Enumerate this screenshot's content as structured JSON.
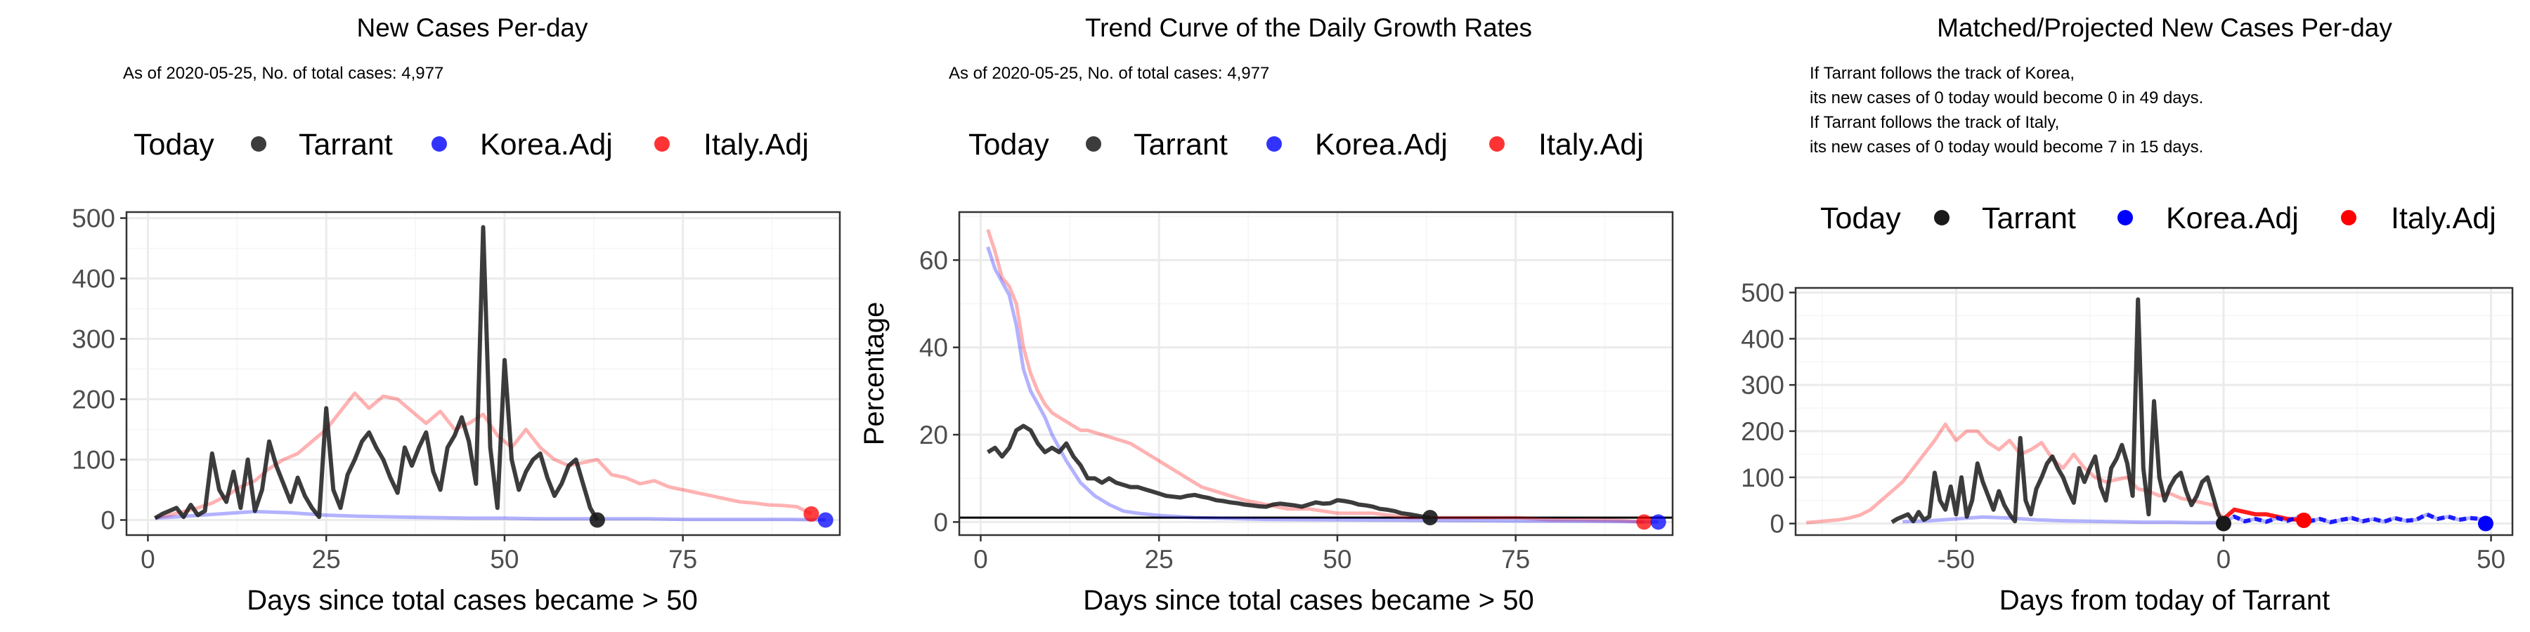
{
  "colors": {
    "tarrant": "#1a1a1a",
    "korea": "#0000ff",
    "italy": "#ff0000",
    "grid_major": "#ebebeb",
    "grid_minor": "#f5f5f5",
    "tick_text": "#4d4d4d"
  },
  "chart_data": [
    {
      "type": "line",
      "title": "New Cases Per-day",
      "subtitle": "As of 2020-05-25, No. of total cases: 4,977",
      "legend": {
        "title": "Today",
        "placement": "top",
        "items": [
          "Tarrant",
          "Korea.Adj",
          "Italy.Adj"
        ]
      },
      "xlabel": "Days since total cases became > 50",
      "ylabel": "",
      "xlim": [
        -3,
        97
      ],
      "ylim": [
        -25,
        510
      ],
      "xticks": [
        0,
        25,
        50,
        75
      ],
      "xtick_labels": [
        "0",
        "25",
        "50",
        "75"
      ],
      "yticks": [
        0,
        100,
        200,
        300,
        400,
        500
      ],
      "ytick_labels": [
        "0",
        "100",
        "200",
        "300",
        "400",
        "500"
      ],
      "grid": true,
      "series": [
        {
          "name": "Italy.Adj",
          "x": [
            1,
            3,
            5,
            7,
            9,
            11,
            13,
            15,
            17,
            19,
            21,
            23,
            25,
            27,
            29,
            31,
            33,
            35,
            37,
            39,
            41,
            43,
            45,
            47,
            49,
            51,
            53,
            55,
            57,
            59,
            61,
            63,
            65,
            67,
            69,
            71,
            73,
            75,
            77,
            79,
            81,
            83,
            85,
            87,
            89,
            91,
            93
          ],
          "y": [
            4,
            8,
            14,
            20,
            28,
            40,
            55,
            65,
            85,
            100,
            110,
            130,
            150,
            180,
            210,
            185,
            205,
            200,
            180,
            160,
            180,
            150,
            160,
            175,
            140,
            120,
            150,
            120,
            100,
            90,
            95,
            100,
            75,
            70,
            60,
            65,
            55,
            50,
            45,
            40,
            35,
            30,
            28,
            25,
            24,
            22,
            10
          ],
          "end_point": {
            "x": 93,
            "y": 10
          }
        },
        {
          "name": "Korea.Adj",
          "x": [
            1,
            5,
            10,
            15,
            20,
            25,
            30,
            35,
            40,
            45,
            50,
            55,
            60,
            65,
            70,
            75,
            80,
            85,
            90,
            95
          ],
          "y": [
            3,
            6,
            10,
            14,
            12,
            8,
            6,
            5,
            4,
            3,
            3,
            2,
            2,
            2,
            2,
            1,
            1,
            1,
            1,
            0
          ],
          "end_point": {
            "x": 95,
            "y": 0
          }
        },
        {
          "name": "Tarrant",
          "x": [
            1,
            2,
            3,
            4,
            5,
            6,
            7,
            8,
            9,
            10,
            11,
            12,
            13,
            14,
            15,
            16,
            17,
            18,
            19,
            20,
            21,
            22,
            23,
            24,
            25,
            26,
            27,
            28,
            29,
            30,
            31,
            32,
            33,
            34,
            35,
            36,
            37,
            38,
            39,
            40,
            41,
            42,
            43,
            44,
            45,
            46,
            47,
            48,
            49,
            50,
            51,
            52,
            53,
            54,
            55,
            56,
            57,
            58,
            59,
            60,
            61,
            62,
            63
          ],
          "y": [
            3,
            10,
            15,
            20,
            5,
            25,
            8,
            15,
            110,
            50,
            30,
            80,
            20,
            100,
            15,
            50,
            130,
            90,
            60,
            30,
            70,
            40,
            20,
            5,
            185,
            50,
            20,
            75,
            100,
            130,
            145,
            120,
            100,
            70,
            45,
            120,
            90,
            120,
            145,
            80,
            50,
            120,
            140,
            170,
            130,
            60,
            485,
            120,
            20,
            265,
            100,
            50,
            80,
            100,
            110,
            70,
            40,
            60,
            90,
            100,
            60,
            20,
            0
          ],
          "end_point": {
            "x": 63,
            "y": 0
          }
        }
      ]
    },
    {
      "type": "line",
      "title": "Trend Curve of the Daily Growth Rates",
      "subtitle": "As of 2020-05-25, No. of total cases: 4,977",
      "legend": {
        "title": "Today",
        "placement": "top",
        "items": [
          "Tarrant",
          "Korea.Adj",
          "Italy.Adj"
        ]
      },
      "xlabel": "Days since total cases became > 50",
      "ylabel": "Percentage",
      "xlim": [
        -3,
        97
      ],
      "ylim": [
        -3,
        71
      ],
      "xticks": [
        0,
        25,
        50,
        75
      ],
      "xtick_labels": [
        "0",
        "25",
        "50",
        "75"
      ],
      "yticks": [
        0,
        20,
        40,
        60
      ],
      "ytick_labels": [
        "0",
        "20",
        "40",
        "60"
      ],
      "grid": true,
      "hline": 1,
      "series": [
        {
          "name": "Italy.Adj",
          "x": [
            1,
            2,
            3,
            4,
            5,
            6,
            7,
            8,
            9,
            10,
            11,
            12,
            13,
            14,
            15,
            17,
            19,
            21,
            23,
            25,
            27,
            29,
            31,
            33,
            35,
            37,
            40,
            43,
            46,
            50,
            55,
            60,
            65,
            70,
            75,
            80,
            85,
            90,
            93
          ],
          "y": [
            67,
            62,
            56,
            54,
            50,
            40,
            34,
            30,
            27,
            25,
            24,
            23,
            22,
            21,
            21,
            20,
            19,
            18,
            16,
            14,
            12,
            10,
            8,
            7,
            6,
            5,
            4,
            3,
            3,
            2,
            2,
            1,
            1,
            1,
            1,
            0.5,
            0.5,
            0.3,
            0
          ],
          "end_point": {
            "x": 93,
            "y": 0
          }
        },
        {
          "name": "Korea.Adj",
          "x": [
            1,
            2,
            3,
            4,
            5,
            6,
            7,
            8,
            9,
            10,
            12,
            14,
            16,
            18,
            20,
            22,
            25,
            30,
            35,
            40,
            50,
            60,
            70,
            80,
            90,
            95
          ],
          "y": [
            63,
            58,
            55,
            52,
            45,
            35,
            30,
            27,
            24,
            20,
            14,
            9,
            6,
            4,
            2.5,
            2,
            1.5,
            1,
            0.8,
            0.6,
            0.5,
            0.4,
            0.3,
            0.2,
            0.1,
            0
          ],
          "end_point": {
            "x": 95,
            "y": 0
          }
        },
        {
          "name": "Tarrant",
          "x": [
            1,
            2,
            3,
            4,
            5,
            6,
            7,
            8,
            9,
            10,
            11,
            12,
            13,
            14,
            15,
            16,
            17,
            18,
            19,
            20,
            21,
            22,
            23,
            24,
            25,
            26,
            27,
            28,
            29,
            30,
            31,
            32,
            33,
            34,
            35,
            36,
            37,
            38,
            39,
            40,
            41,
            42,
            43,
            44,
            45,
            46,
            47,
            48,
            49,
            50,
            51,
            52,
            53,
            54,
            55,
            56,
            57,
            58,
            59,
            60,
            61,
            62,
            63
          ],
          "y": [
            16,
            17,
            15,
            17,
            21,
            22,
            21,
            18,
            16,
            17,
            16,
            18,
            15,
            13,
            10,
            10,
            9,
            10,
            9,
            8.5,
            8,
            8,
            7.5,
            7,
            6.5,
            6,
            5.8,
            5.6,
            6,
            6.2,
            5.8,
            5.5,
            5,
            4.8,
            4.5,
            4.3,
            4,
            3.8,
            3.6,
            3.5,
            4,
            4.2,
            4,
            3.8,
            3.5,
            4,
            4.5,
            4.2,
            4.3,
            5,
            4.8,
            4.5,
            4,
            3.8,
            3.5,
            3,
            2.8,
            2.5,
            2,
            1.8,
            1.5,
            1.2,
            1
          ],
          "end_point": {
            "x": 63,
            "y": 1
          }
        }
      ]
    },
    {
      "type": "line",
      "title": "Matched/Projected New Cases Per-day",
      "annotations": [
        "If Tarrant follows the track of Korea,",
        "its new cases of 0 today would become 0 in 49 days.",
        "If Tarrant follows the track of Italy,",
        "its new cases of 0 today would become 7 in 15 days."
      ],
      "legend": {
        "title": "Today",
        "placement": "top",
        "items": [
          "Tarrant",
          "Korea.Adj",
          "Italy.Adj"
        ]
      },
      "xlabel": "Days from today of Tarrant",
      "ylabel": "",
      "xlim": [
        -80,
        54
      ],
      "ylim": [
        -25,
        510
      ],
      "xticks": [
        -50,
        0,
        50
      ],
      "xtick_labels": [
        "-50",
        "0",
        "50"
      ],
      "yticks": [
        0,
        100,
        200,
        300,
        400,
        500
      ],
      "ytick_labels": [
        "0",
        "100",
        "200",
        "300",
        "400",
        "500"
      ],
      "grid": true,
      "series": [
        {
          "name": "Italy.Adj",
          "x": [
            -78,
            -75,
            -72,
            -70,
            -68,
            -66,
            -64,
            -62,
            -60,
            -58,
            -56,
            -54,
            -52,
            -50,
            -48,
            -46,
            -44,
            -42,
            -40,
            -38,
            -36,
            -34,
            -32,
            -30,
            -28,
            -26,
            -24,
            -22,
            -20,
            -18,
            -16,
            -14,
            -12,
            -10,
            -8,
            -6,
            -4,
            -2,
            0,
            2,
            4,
            6,
            8,
            10,
            12,
            15
          ],
          "y": [
            2,
            5,
            8,
            12,
            18,
            30,
            50,
            70,
            90,
            120,
            150,
            180,
            215,
            180,
            200,
            200,
            175,
            160,
            180,
            150,
            160,
            175,
            140,
            120,
            150,
            120,
            100,
            90,
            95,
            100,
            75,
            70,
            60,
            65,
            55,
            50,
            45,
            40,
            10,
            30,
            25,
            20,
            20,
            15,
            10,
            7
          ],
          "end_point": {
            "x": 15,
            "y": 7
          }
        },
        {
          "name": "Korea.Adj",
          "x": [
            -60,
            -55,
            -50,
            -45,
            -40,
            -35,
            -30,
            -25,
            -20,
            -15,
            -10,
            -5,
            0,
            2,
            4,
            6,
            8,
            10,
            12,
            14,
            16,
            18,
            20,
            22,
            24,
            26,
            28,
            30,
            32,
            34,
            36,
            38,
            40,
            42,
            44,
            46,
            48,
            49
          ],
          "y": [
            4,
            6,
            10,
            14,
            12,
            8,
            6,
            5,
            4,
            3,
            3,
            2,
            2,
            15,
            5,
            10,
            4,
            12,
            6,
            14,
            5,
            10,
            3,
            8,
            12,
            5,
            10,
            4,
            12,
            6,
            8,
            20,
            10,
            15,
            8,
            12,
            10,
            0
          ],
          "end_point": {
            "x": 49,
            "y": 0
          }
        },
        {
          "name": "Tarrant",
          "x": [
            -62,
            -61,
            -60,
            -59,
            -58,
            -57,
            -56,
            -55,
            -54,
            -53,
            -52,
            -51,
            -50,
            -49,
            -48,
            -47,
            -46,
            -45,
            -44,
            -43,
            -42,
            -41,
            -40,
            -39,
            -38,
            -37,
            -36,
            -35,
            -34,
            -33,
            -32,
            -31,
            -30,
            -29,
            -28,
            -27,
            -26,
            -25,
            -24,
            -23,
            -22,
            -21,
            -20,
            -19,
            -18,
            -17,
            -16,
            -15,
            -14,
            -13,
            -12,
            -11,
            -10,
            -9,
            -8,
            -7,
            -6,
            -5,
            -4,
            -3,
            -2,
            -1,
            0
          ],
          "y": [
            3,
            10,
            15,
            20,
            5,
            25,
            8,
            15,
            110,
            50,
            30,
            80,
            20,
            100,
            15,
            50,
            130,
            90,
            60,
            30,
            70,
            40,
            20,
            5,
            185,
            50,
            20,
            75,
            100,
            130,
            145,
            120,
            100,
            70,
            45,
            120,
            90,
            120,
            145,
            80,
            50,
            120,
            140,
            170,
            130,
            60,
            485,
            120,
            20,
            265,
            100,
            50,
            80,
            100,
            110,
            70,
            40,
            60,
            90,
            100,
            60,
            20,
            0
          ],
          "end_point": {
            "x": 0,
            "y": 0
          }
        }
      ]
    }
  ]
}
